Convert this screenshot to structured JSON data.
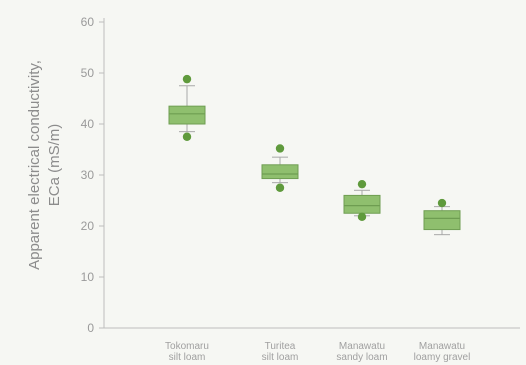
{
  "chart_data": {
    "type": "box",
    "ylabel_line1": "Apparent electrical conductivity,",
    "ylabel_line2": "ECa (mS/m)",
    "ylim": [
      0,
      60
    ],
    "yticks": [
      0,
      10,
      20,
      30,
      40,
      50,
      60
    ],
    "categories": [
      {
        "line1": "Tokomaru",
        "line2": "silt loam"
      },
      {
        "line1": "Turitea",
        "line2": "silt loam"
      },
      {
        "line1": "Manawatu",
        "line2": "sandy loam"
      },
      {
        "line1": "Manawatu",
        "line2": "loamy gravel"
      }
    ],
    "boxes": [
      {
        "whisker_low": 38.5,
        "q1": 40.0,
        "median": 42.0,
        "q3": 43.5,
        "whisker_high": 47.5,
        "outliers": [
          37.5,
          48.8
        ]
      },
      {
        "whisker_low": 28.5,
        "q1": 29.3,
        "median": 30.2,
        "q3": 32.0,
        "whisker_high": 33.5,
        "outliers": [
          27.5,
          35.2
        ]
      },
      {
        "whisker_low": 22.0,
        "q1": 22.5,
        "median": 24.0,
        "q3": 26.0,
        "whisker_high": 27.0,
        "outliers": [
          21.8,
          28.2
        ]
      },
      {
        "whisker_low": 18.3,
        "q1": 19.3,
        "median": 21.5,
        "q3": 23.0,
        "whisker_high": 23.8,
        "outliers": [
          24.5
        ]
      }
    ],
    "colors": {
      "box_fill": "#8fbf6e",
      "box_stroke": "#6f9e52",
      "outlier": "#5f9a3c",
      "axis": "#bdbdbd"
    },
    "grid": false,
    "legend": "none"
  }
}
